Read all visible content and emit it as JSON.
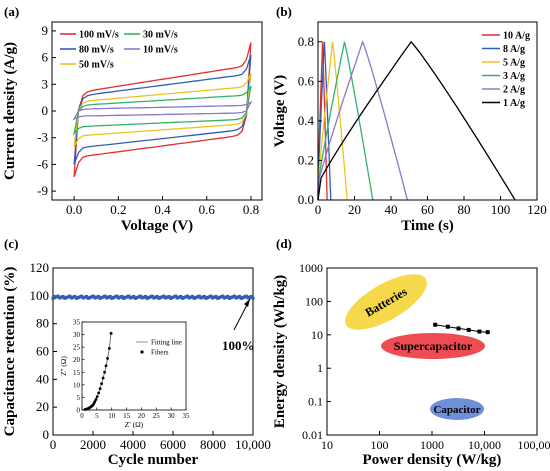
{
  "colors": {
    "red": "#e0302e",
    "blue": "#2f5fb0",
    "green": "#33b26b",
    "yellow": "#f0c21e",
    "purple": "#8a78c8",
    "black": "#000000",
    "pink": "#e83a8c",
    "teal": "#3aa0a0",
    "batteries": "#f6d94a",
    "supercap": "#ee4b52",
    "capacitor": "#6f8fd8"
  },
  "chart_data": [
    {
      "panel": "(a)",
      "type": "line",
      "xlabel": "Voltage (V)",
      "ylabel": "Current density (A/g)",
      "xlim": [
        -0.1,
        0.85
      ],
      "ylim": [
        -10,
        10
      ],
      "xticks": [
        "0.0",
        "0.2",
        "0.4",
        "0.6",
        "0.8"
      ],
      "yticks": [
        "-9",
        "-6",
        "-3",
        "0",
        "3",
        "6",
        "9"
      ],
      "legend": [
        "100 mV/s",
        "80 mV/s",
        "50 mV/s",
        "30 mV/s",
        "10 mV/s"
      ],
      "series": [
        {
          "name": "100 mV/s",
          "color": "red",
          "upper_start": 2.0,
          "upper_end": 7.7,
          "lower_start": -7.4,
          "lower_end": -2.6
        },
        {
          "name": "80 mV/s",
          "color": "blue",
          "upper_start": 1.6,
          "upper_end": 6.3,
          "lower_start": -6.0,
          "lower_end": -2.0
        },
        {
          "name": "50 mV/s",
          "color": "yellow",
          "upper_start": 1.0,
          "upper_end": 4.2,
          "lower_start": -4.0,
          "lower_end": -1.4
        },
        {
          "name": "30 mV/s",
          "color": "green",
          "upper_start": 0.6,
          "upper_end": 2.8,
          "lower_start": -2.5,
          "lower_end": -0.9
        },
        {
          "name": "10 mV/s",
          "color": "purple",
          "upper_start": 0.2,
          "upper_end": 1.0,
          "lower_start": -0.9,
          "lower_end": -0.2
        }
      ]
    },
    {
      "panel": "(b)",
      "type": "line",
      "xlabel": "Time (s)",
      "ylabel": "Voltage (V)",
      "xlim": [
        0,
        120
      ],
      "ylim": [
        0,
        0.9
      ],
      "xticks": [
        "0",
        "20",
        "40",
        "60",
        "80",
        "100",
        "120"
      ],
      "yticks": [
        "0.0",
        "0.2",
        "0.4",
        "0.6",
        "0.8"
      ],
      "legend": [
        "10 A/g",
        "8 A/g",
        "5 A/g",
        "3 A/g",
        "2 A/g",
        "1 A/g"
      ],
      "series": [
        {
          "name": "10 A/g",
          "color": "red",
          "x": [
            0,
            2.5,
            5
          ],
          "y": [
            0,
            0.8,
            0
          ]
        },
        {
          "name": "8 A/g",
          "color": "blue",
          "x": [
            0,
            3.5,
            7
          ],
          "y": [
            0,
            0.8,
            0
          ]
        },
        {
          "name": "5 A/g",
          "color": "yellow",
          "x": [
            0,
            8,
            16
          ],
          "y": [
            0,
            0.8,
            0
          ]
        },
        {
          "name": "3 A/g",
          "color": "green",
          "x": [
            0,
            14.5,
            30
          ],
          "y": [
            0,
            0.8,
            0
          ]
        },
        {
          "name": "2 A/g",
          "color": "purple",
          "x": [
            0,
            24.5,
            49
          ],
          "y": [
            0,
            0.8,
            0
          ]
        },
        {
          "name": "1 A/g",
          "color": "black",
          "x": [
            0,
            51,
            108
          ],
          "y": [
            0,
            0.8,
            0
          ]
        }
      ]
    },
    {
      "panel": "(c)",
      "type": "scatter",
      "xlabel": "Cycle number",
      "ylabel": "Capacitance retention (%)",
      "xlim": [
        0,
        10000
      ],
      "ylim": [
        0,
        120
      ],
      "xticks": [
        "0",
        "2000",
        "4000",
        "6000",
        "8000",
        "10,000"
      ],
      "yticks": [
        "0",
        "20",
        "40",
        "60",
        "80",
        "100",
        "120"
      ],
      "annotation": "100%",
      "series": [
        {
          "name": "",
          "color": "blue",
          "x_start": 0,
          "x_end": 10000,
          "count": 120,
          "y": 99
        }
      ],
      "inset": {
        "xlabel": "Z' (Ω)",
        "ylabel": "Z'' (Ω)",
        "xlim": [
          0,
          35
        ],
        "ylim": [
          0,
          35
        ],
        "xticks": [
          "0",
          "5",
          "10",
          "15",
          "20",
          "25",
          "30",
          "35"
        ],
        "yticks": [
          "0",
          "5",
          "10",
          "15",
          "20",
          "25",
          "30",
          "35"
        ],
        "legend": [
          "Fitting line",
          "Fibers"
        ],
        "fibers_x": [
          1.0,
          1.3,
          1.6,
          1.9,
          2.2,
          2.5,
          2.8,
          3.1,
          3.4,
          3.7,
          4.0,
          4.3,
          4.7,
          5.1,
          5.6,
          6.1,
          6.6,
          7.1,
          7.6,
          8.1,
          8.6,
          9.2,
          9.8
        ],
        "fibers_y": [
          0.2,
          0.3,
          0.4,
          0.5,
          0.7,
          0.9,
          1.1,
          1.4,
          1.7,
          2.0,
          2.6,
          3.3,
          4.2,
          5.3,
          6.8,
          8.5,
          10.5,
          12.7,
          15.0,
          17.6,
          20.5,
          24.5,
          30.5
        ]
      }
    },
    {
      "panel": "(d)",
      "type": "scatter",
      "xlabel": "Power density (W/kg)",
      "ylabel": "Energy density (Wh/kg)",
      "xscale": "log",
      "yscale": "log",
      "xlim": [
        10,
        100000
      ],
      "ylim": [
        0.01,
        1000
      ],
      "xticks": [
        "10",
        "100",
        "1000",
        "10,000",
        "100,000"
      ],
      "yticks": [
        "0.01",
        "0.1",
        "1",
        "10",
        "100",
        "1000"
      ],
      "regions": [
        {
          "label": "Batteries",
          "color": "batteries"
        },
        {
          "label": "Supercapacitor",
          "color": "supercap"
        },
        {
          "label": "Capacitor",
          "color": "capacitor"
        }
      ],
      "series": [
        {
          "name": "",
          "color": "black",
          "x": [
            1150,
            2000,
            3200,
            5000,
            8000,
            11500
          ],
          "y": [
            20,
            17.5,
            15.5,
            14,
            12.5,
            12
          ]
        }
      ]
    }
  ]
}
